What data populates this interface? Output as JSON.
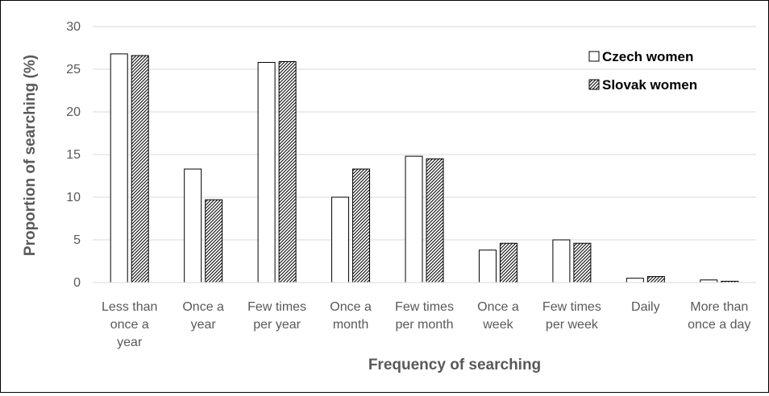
{
  "chart_data": {
    "type": "bar",
    "title": "",
    "xlabel": "Frequency of searching",
    "ylabel": "Proportion of searching (%)",
    "ylim": [
      0,
      30
    ],
    "yticks": [
      0,
      5,
      10,
      15,
      20,
      25,
      30
    ],
    "grid": true,
    "legend_position": "top-right",
    "categories": [
      [
        "Less than",
        "once a",
        "year"
      ],
      [
        "Once a",
        "year"
      ],
      [
        "Few times",
        "per year"
      ],
      [
        "Once a",
        "month"
      ],
      [
        "Few times",
        "per month"
      ],
      [
        "Once a",
        "week"
      ],
      [
        "Few times",
        "per week"
      ],
      [
        "Daily"
      ],
      [
        "More than",
        "once a day"
      ]
    ],
    "series": [
      {
        "name": "Czech women",
        "fill": "white",
        "values": [
          26.8,
          13.3,
          25.8,
          10.0,
          14.8,
          3.8,
          5.0,
          0.5,
          0.3
        ]
      },
      {
        "name": "Slovak women",
        "fill": "hatched",
        "values": [
          26.6,
          9.7,
          25.9,
          13.3,
          14.5,
          4.6,
          4.6,
          0.7,
          0.15
        ]
      }
    ],
    "colors": {
      "bar_edge": "#000000",
      "grid": "#d9d9d9",
      "axis": "#d9d9d9",
      "text": "#595959"
    }
  }
}
